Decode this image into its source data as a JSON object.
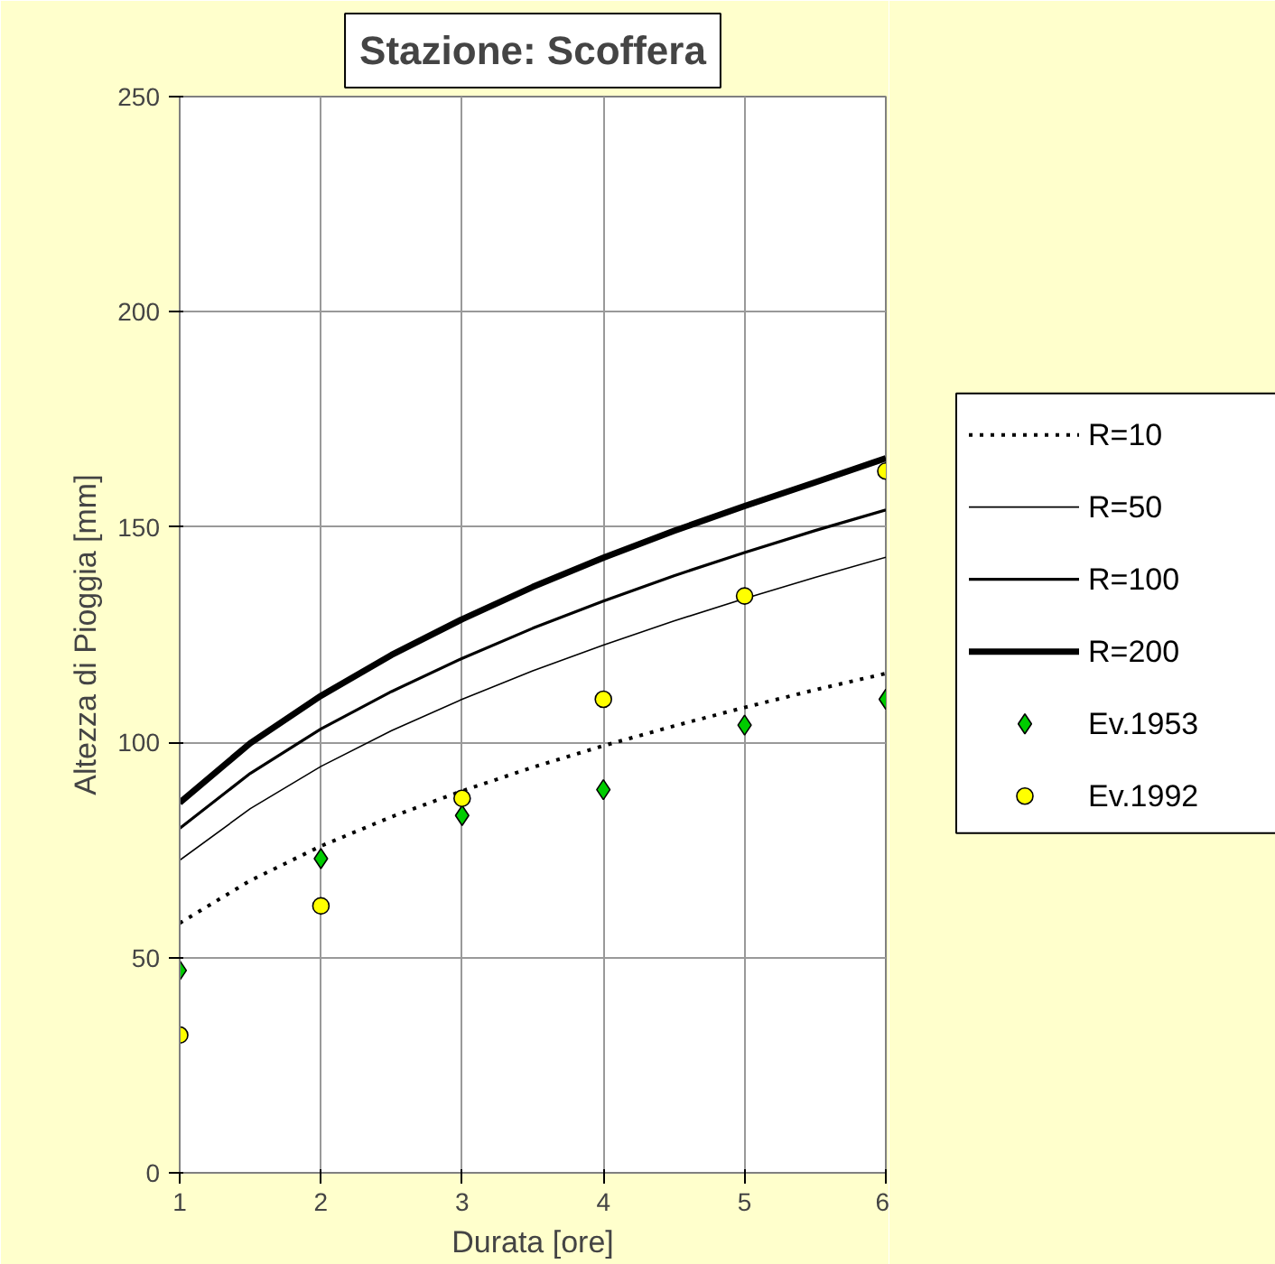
{
  "chart_data": {
    "type": "line",
    "title": "Stazione: Scoffera",
    "xlabel": "Durata [ore]",
    "ylabel": "Altezza di Pioggia [mm]",
    "xlim": [
      1,
      6
    ],
    "xticks": [
      1,
      2,
      3,
      4,
      5,
      6
    ],
    "ylim": [
      0,
      250
    ],
    "yticks": [
      0,
      50,
      100,
      150,
      200,
      250
    ],
    "grid": true,
    "legend": "right",
    "series": [
      {
        "name": "R=10",
        "color": "#000000",
        "line_style": "dotted",
        "x": [
          1,
          1.5,
          2,
          2.5,
          3,
          3.5,
          4,
          4.5,
          5,
          5.5,
          6
        ],
        "values": [
          58,
          67.9,
          75.9,
          82.7,
          88.7,
          94.2,
          99.2,
          103.8,
          108.1,
          112.2,
          116
        ]
      },
      {
        "name": "R=50",
        "color": "#000000",
        "line_style": "solid",
        "x": [
          1,
          1.5,
          2,
          2.5,
          3,
          3.5,
          4,
          4.5,
          5,
          5.5,
          6
        ],
        "values": [
          72.6,
          84.6,
          94.4,
          102.7,
          110,
          116.6,
          122.6,
          128.2,
          133.4,
          138.3,
          143
        ]
      },
      {
        "name": "R=100",
        "color": "#000000",
        "line_style": "solid",
        "x": [
          1,
          1.5,
          2,
          2.5,
          3,
          3.5,
          4,
          4.5,
          5,
          5.5,
          6
        ],
        "values": [
          80,
          92.8,
          103.1,
          111.8,
          119.5,
          126.5,
          132.8,
          138.7,
          144.1,
          149.2,
          154
        ]
      },
      {
        "name": "R=200",
        "color": "#000000",
        "line_style": "solid",
        "x": [
          1,
          1.5,
          2,
          2.5,
          3,
          3.5,
          4,
          4.5,
          5,
          5.5,
          6
        ],
        "values": [
          86,
          99.8,
          110.8,
          120.3,
          128.6,
          136.1,
          142.9,
          149.1,
          154.9,
          160.4,
          166
        ]
      },
      {
        "name": "Ev.1953",
        "type": "scatter",
        "color": "#00cc00",
        "marker": "diamond",
        "x": [
          1,
          2,
          3,
          4,
          5,
          6
        ],
        "values": [
          47,
          73,
          83,
          89,
          104,
          110
        ]
      },
      {
        "name": "Ev.1992",
        "type": "scatter",
        "color": "#ffff00",
        "marker": "circle",
        "x": [
          1,
          2,
          3,
          4,
          5,
          6
        ],
        "values": [
          32,
          62,
          87,
          110,
          134,
          163
        ]
      }
    ]
  }
}
